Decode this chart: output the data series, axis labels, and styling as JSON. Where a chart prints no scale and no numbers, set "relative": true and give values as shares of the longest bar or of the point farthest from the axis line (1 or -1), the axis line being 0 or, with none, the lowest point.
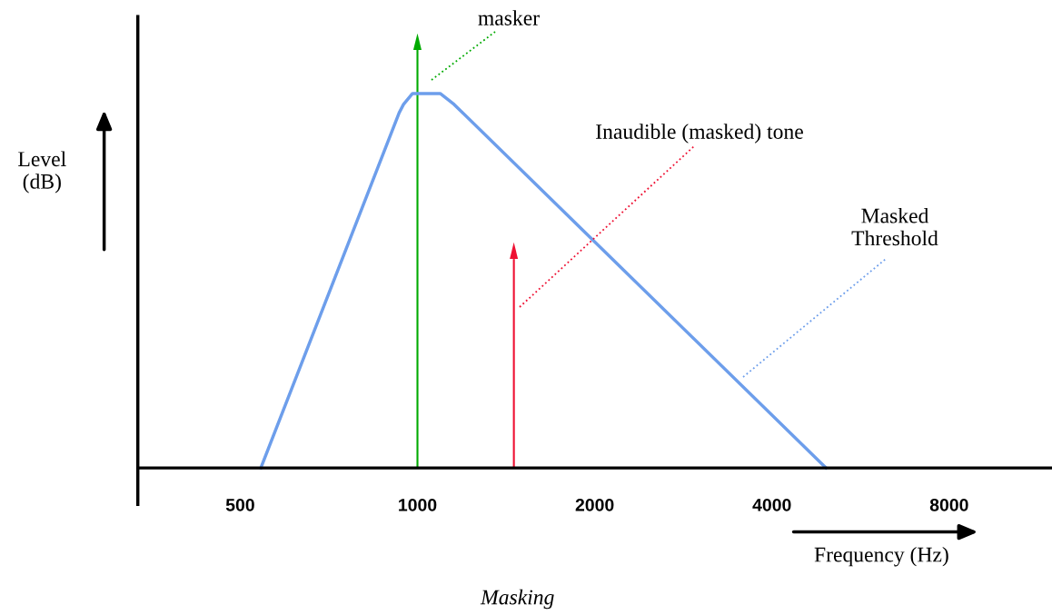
{
  "chart_data": {
    "type": "line",
    "relative": true,
    "log": "x",
    "xlabel": "Frequency (Hz)",
    "ylabel": "Level\n(dB)",
    "xlim": [
      335,
      11960
    ],
    "xticks": [
      500,
      1000,
      2000,
      4000,
      8000
    ],
    "series": [
      {
        "color": "#6d9eeb",
        "x": [
          542,
          931,
          947,
          981,
          1093,
          1154,
          4942
        ],
        "values": [
          0,
          0.85,
          0.87,
          0.896,
          0.896,
          0.87,
          0
        ]
      },
      {
        "type": "bar",
        "color": "#00aa00",
        "x": [
          1000
        ],
        "values": [
          1
        ]
      },
      {
        "type": "bar",
        "color": "#ee1133",
        "x": [
          1458
        ],
        "values": [
          0.5
        ]
      }
    ],
    "annotations": [
      "masker",
      "Inaudible (masked) tone",
      "Masked\nThreshold",
      "Masking"
    ],
    "grid": false,
    "legend": false,
    "marker": "none",
    "line_style": "solid"
  }
}
